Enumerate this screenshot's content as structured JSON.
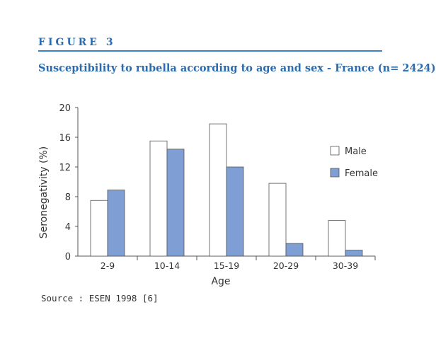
{
  "figure": {
    "label": "FIGURE 3",
    "title": "Susceptibility to rubella according to age and sex - France (n= 2424)",
    "source": "Source : ESEN 1998 [6]"
  },
  "colors": {
    "accent": "#2b6cb0",
    "male_fill": "#ffffff",
    "female_fill": "#7f9fd4",
    "axis": "#555555"
  },
  "chart_data": {
    "type": "bar",
    "categories": [
      "2-9",
      "10-14",
      "15-19",
      "20-29",
      "30-39"
    ],
    "series": [
      {
        "name": "Male",
        "values": [
          7.5,
          15.5,
          17.8,
          9.8,
          4.8
        ]
      },
      {
        "name": "Female",
        "values": [
          8.9,
          14.4,
          12.0,
          1.7,
          0.8
        ]
      }
    ],
    "xlabel": "Age",
    "ylabel": "Seronegativity (%)",
    "ylim": [
      0,
      20
    ],
    "yticks": [
      0,
      4,
      8,
      12,
      16,
      20
    ],
    "grid": false,
    "legend_position": "right"
  }
}
